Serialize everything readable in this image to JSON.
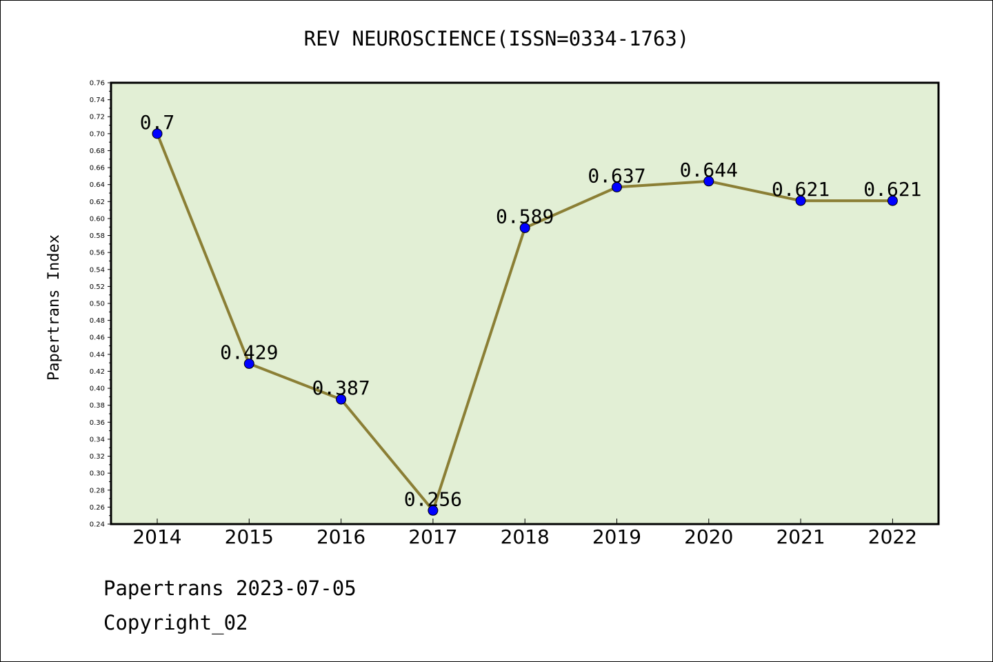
{
  "chart_data": {
    "type": "line",
    "title": "REV NEUROSCIENCE(ISSN=0334-1763)",
    "xlabel": "",
    "ylabel": "Papertrans Index",
    "categories": [
      "2014",
      "2015",
      "2016",
      "2017",
      "2018",
      "2019",
      "2020",
      "2021",
      "2022"
    ],
    "series": [
      {
        "values": [
          0.7,
          0.429,
          0.387,
          0.256,
          0.589,
          0.637,
          0.644,
          0.621,
          0.621
        ],
        "labels": [
          "0.7",
          "0.429",
          "0.387",
          "0.256",
          "0.589",
          "0.637",
          "0.644",
          "0.621",
          "0.621"
        ]
      }
    ],
    "ylim": [
      0.24,
      0.76
    ],
    "ytick_step": 0.02,
    "grid": false,
    "colors": {
      "plot_background": "#e2efd5",
      "line": "#8b7f35",
      "marker": "#0000ff"
    }
  },
  "footer": {
    "line1": "Papertrans 2023-07-05",
    "line2": "Copyright_02"
  }
}
